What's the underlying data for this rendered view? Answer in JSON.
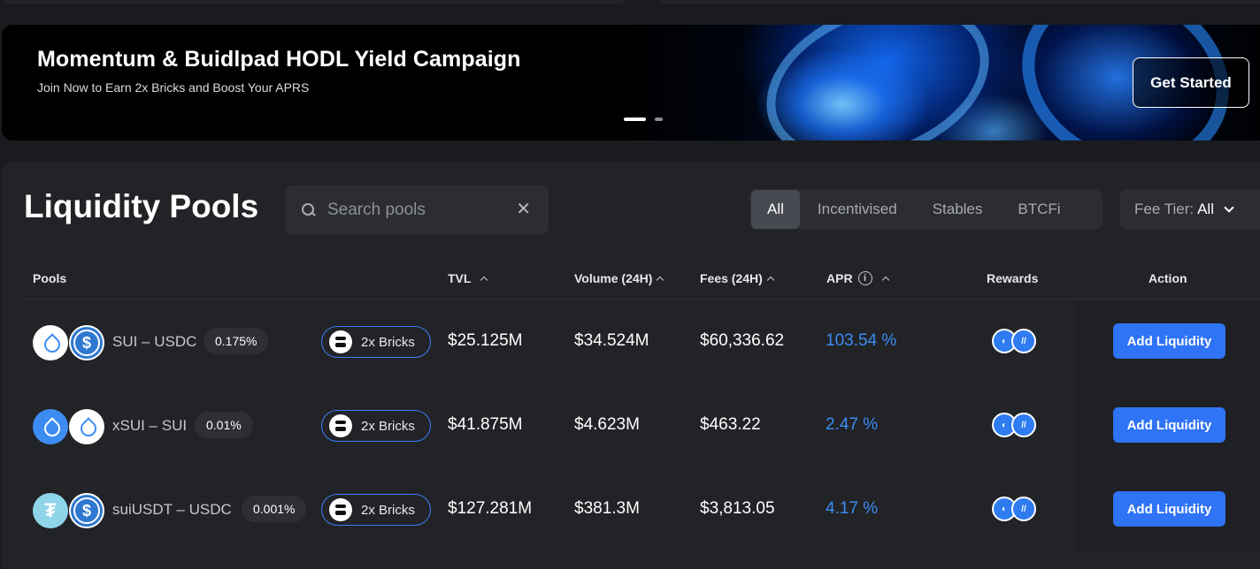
{
  "banner": {
    "title": "Momentum & Buidlpad HODL Yield Campaign",
    "subtitle": "Join Now to Earn 2x Bricks and Boost Your APRS",
    "cta_label": "Get Started"
  },
  "pools": {
    "title": "Liquidity Pools",
    "search": {
      "placeholder": "Search pools",
      "value": "",
      "clear_glyph": "✕"
    },
    "filters": [
      "All",
      "Incentivised",
      "Stables",
      "BTCFi"
    ],
    "active_filter": "All",
    "fee_tier": {
      "label": "Fee Tier:",
      "value": "All"
    },
    "columns": {
      "pools": "Pools",
      "tvl": "TVL",
      "volume": "Volume (24H)",
      "fees": "Fees (24H)",
      "apr": "APR",
      "rewards": "Rewards",
      "action": "Action"
    },
    "rows": [
      {
        "pair": "SUI – USDC",
        "fee": "0.175%",
        "bricks": "2x Bricks",
        "tvl": "$25.125M",
        "volume": "$34.524M",
        "fees": "$60,336.62",
        "apr": "103.54 %",
        "action": "Add Liquidity",
        "icons": [
          "sui-icon",
          "usdc-icon"
        ]
      },
      {
        "pair": "xSUI – SUI",
        "fee": "0.01%",
        "bricks": "2x Bricks",
        "tvl": "$41.875M",
        "volume": "$4.623M",
        "fees": "$463.22",
        "apr": "2.47 %",
        "action": "Add Liquidity",
        "icons": [
          "xsui-icon",
          "sui-icon"
        ]
      },
      {
        "pair": "suiUSDT – USDC",
        "fee": "0.001%",
        "bricks": "2x Bricks",
        "tvl": "$127.281M",
        "volume": "$381.3M",
        "fees": "$3,813.05",
        "apr": "4.17 %",
        "action": "Add Liquidity",
        "icons": [
          "usdt-icon",
          "usdc-icon"
        ]
      }
    ]
  },
  "colors": {
    "accent": "#2f73f6",
    "apr": "#3a8df5",
    "background": "#1a1b1e",
    "panel": "#222327"
  }
}
